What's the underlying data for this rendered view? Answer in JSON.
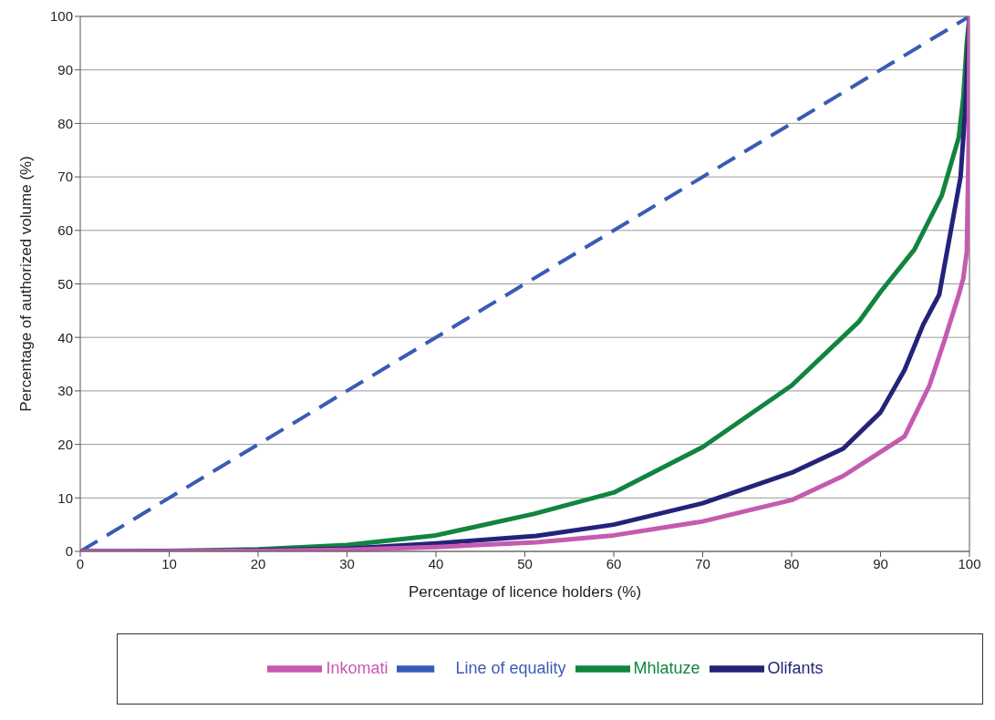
{
  "chart_data": {
    "type": "line",
    "xlabel": "Percentage of licence holders (%)",
    "ylabel": "Percentage of authorized volume (%)",
    "xlim": [
      0,
      100
    ],
    "xticks": [
      0,
      10,
      20,
      30,
      40,
      50,
      60,
      70,
      80,
      90,
      100
    ],
    "ylim": [
      0,
      100
    ],
    "yticks": [
      0,
      10,
      20,
      30,
      40,
      50,
      60,
      70,
      80,
      90,
      100
    ],
    "grid": "y",
    "legend": "bottom",
    "marker": "none",
    "series": [
      {
        "name": "Line of equality",
        "color": "#3a5bb5",
        "line_style": "dashed",
        "x": [
          0,
          100
        ],
        "values": [
          0,
          100
        ]
      },
      {
        "name": "Mhlatuze",
        "color": "#11843f",
        "line_style": "solid",
        "x": [
          0,
          10,
          20,
          30,
          40,
          51,
          60,
          70,
          80,
          87.6,
          90,
          93.8,
          96.9,
          98.8,
          99.3,
          99.7,
          100
        ],
        "values": [
          0,
          0.1,
          0.4,
          1.2,
          3,
          7,
          11,
          19.5,
          31,
          43,
          48.5,
          56.4,
          66.6,
          77.4,
          84.7,
          95,
          100
        ]
      },
      {
        "name": "Olifants",
        "color": "#24237a",
        "line_style": "solid",
        "x": [
          0,
          10,
          20,
          30,
          40,
          51.3,
          60,
          70,
          80,
          85.8,
          90,
          92.7,
          94.8,
          96.6,
          99,
          99.5,
          100
        ],
        "values": [
          0,
          0,
          0.2,
          0.5,
          1.5,
          2.9,
          5,
          9,
          14.7,
          19.2,
          26,
          33.9,
          42.4,
          48,
          70,
          82,
          100
        ]
      },
      {
        "name": "Inkomati",
        "color": "#c45bb0",
        "line_style": "solid",
        "x": [
          0,
          10,
          20,
          30,
          40,
          51.3,
          60,
          70,
          80,
          85.8,
          90,
          92.7,
          95.5,
          97.2,
          98.8,
          99.3,
          99.7,
          99.9,
          100
        ],
        "values": [
          0,
          0,
          0.1,
          0.3,
          0.8,
          1.7,
          3,
          5.6,
          9.6,
          14.1,
          18.6,
          21.5,
          31,
          39.5,
          48,
          51,
          56,
          75,
          100
        ]
      }
    ]
  }
}
